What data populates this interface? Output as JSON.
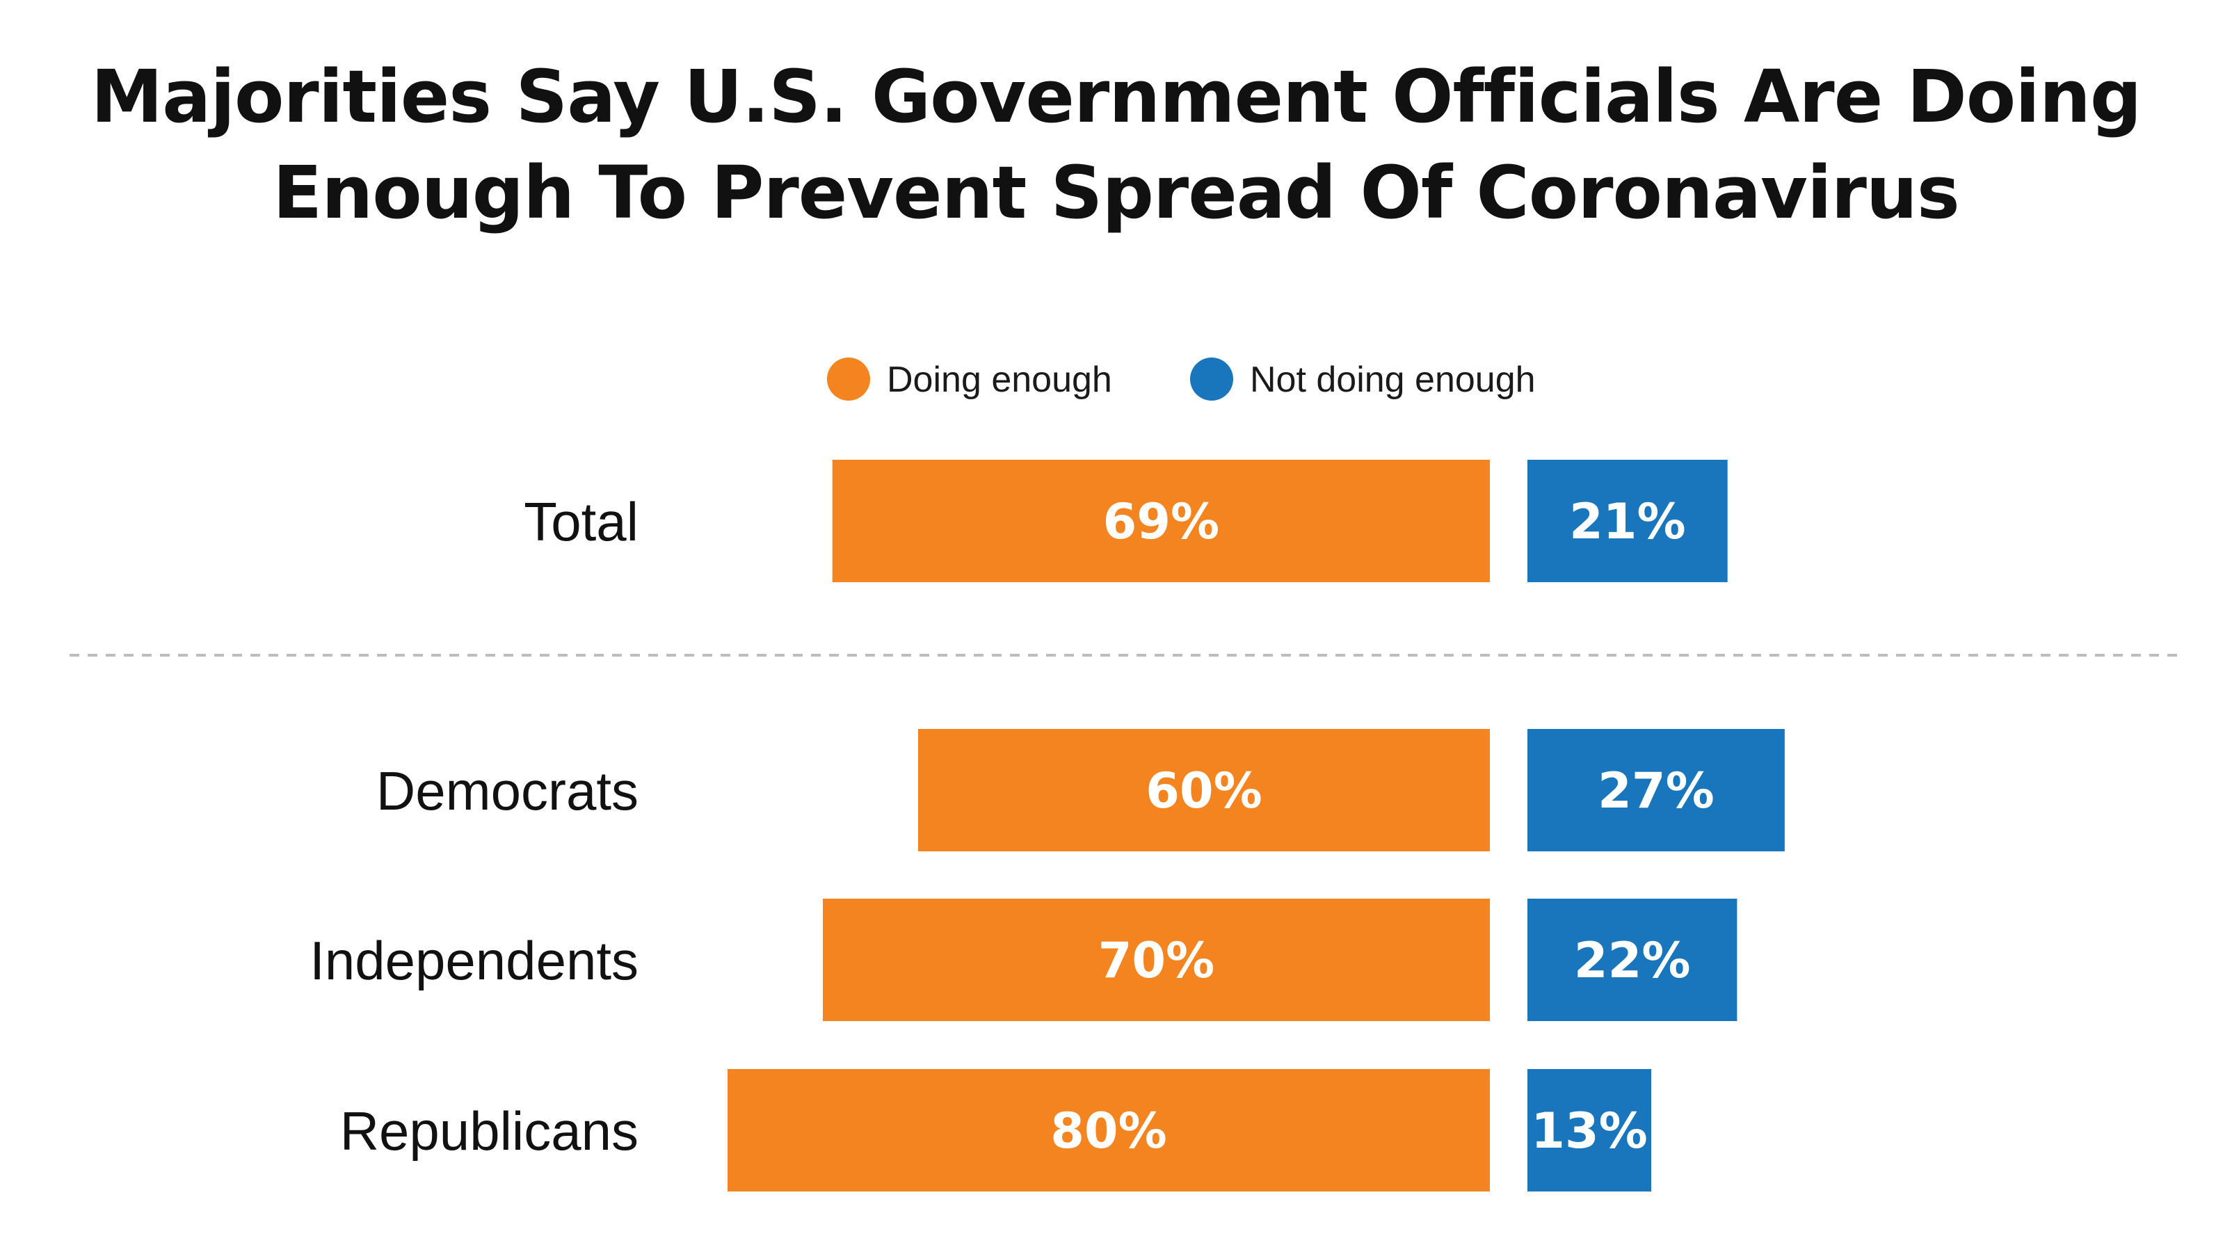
{
  "title_lines": [
    "Majorities Say U.S. Government Officials Are Doing",
    "Enough To Prevent Spread Of Coronavirus"
  ],
  "colors": {
    "doing": "#F4841F",
    "not_doing": "#1A76BC",
    "divider": "#bdbdbd"
  },
  "chart_data": {
    "type": "bar",
    "orientation": "horizontal-diverging",
    "categories": [
      "Total",
      "Democrats",
      "Independents",
      "Republicans"
    ],
    "series": [
      {
        "name": "Doing enough",
        "values": [
          69,
          60,
          70,
          80
        ]
      },
      {
        "name": "Not doing enough",
        "values": [
          21,
          27,
          22,
          13
        ]
      }
    ],
    "data_labels": [
      [
        "69%",
        "60%",
        "70%",
        "80%"
      ],
      [
        "21%",
        "27%",
        "22%",
        "13%"
      ]
    ],
    "legend": {
      "placement": "top-center",
      "entries": [
        "Doing enough",
        "Not doing enough"
      ]
    },
    "grid": false,
    "divider_after": "Total"
  }
}
